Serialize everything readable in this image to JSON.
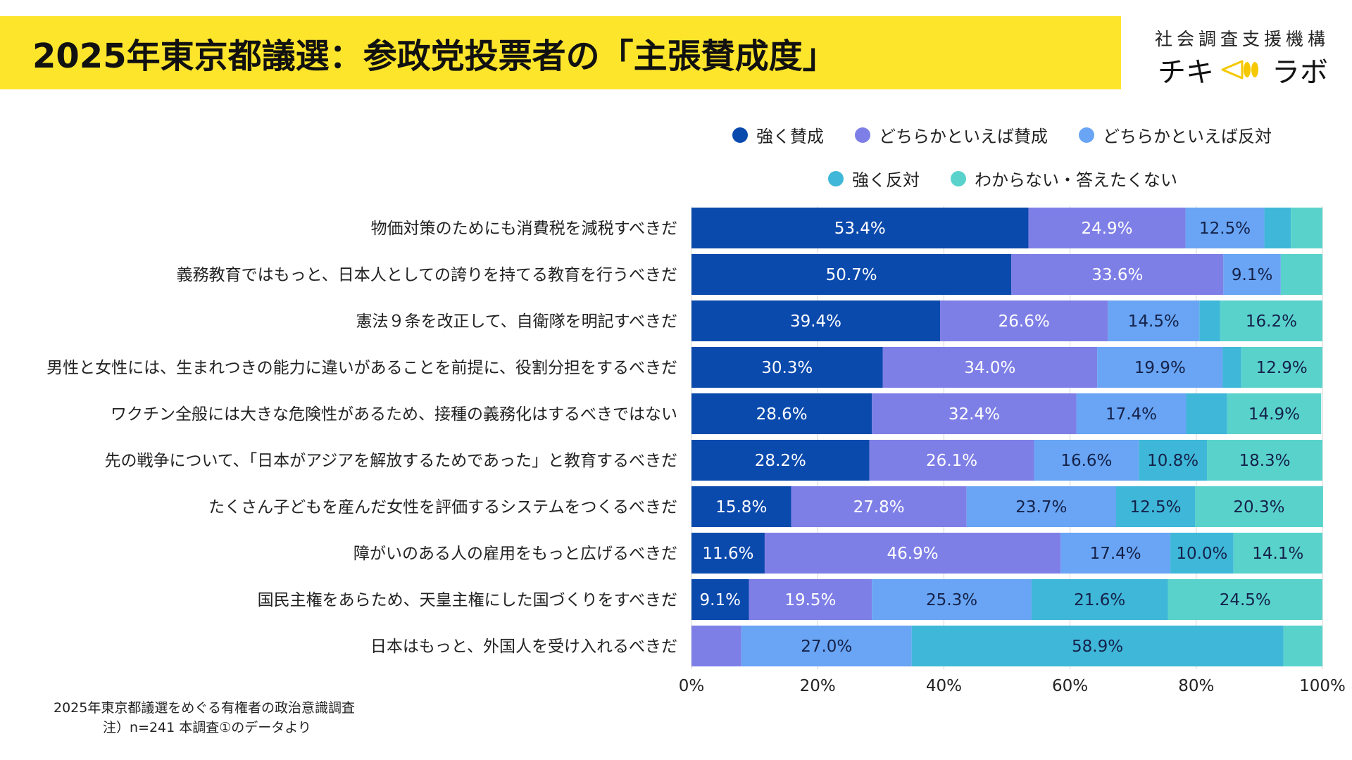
{
  "header": {
    "title": "2025年東京都議選：参政党投票者の「主張賛成度」",
    "org_name": "社会調査支援機構",
    "brand_left": "チキ",
    "brand_right": "ラボ"
  },
  "notes": {
    "source": "2025年東京都議選をめぐる有権者の政治意識調査",
    "sample": "注）n=241 本調査①のデータより"
  },
  "chart_data": {
    "type": "bar",
    "orientation": "horizontal",
    "stacked": true,
    "title": "",
    "xlabel": "",
    "ylabel": "",
    "xlim": [
      0,
      100
    ],
    "x_ticks": [
      "0%",
      "20%",
      "40%",
      "60%",
      "80%",
      "100%"
    ],
    "legend_position": "top-right",
    "grid": "vertical",
    "categories": [
      "物価対策のためにも消費税を減税すべきだ",
      "義務教育ではもっと、日本人としての誇りを持てる教育を行うべきだ",
      "憲法９条を改正して、自衛隊を明記すべきだ",
      "男性と女性には、生まれつきの能力に違いがあることを前提に、役割分担をするべきだ",
      "ワクチン全般には大きな危険性があるため、接種の義務化はするべきではない",
      "先の戦争について、「日本がアジアを解放するためであった」と教育するべきだ",
      "たくさん子どもを産んだ女性を評価するシステムをつくるべきだ",
      "障がいのある人の雇用をもっと広げるべきだ",
      "国民主権をあらため、天皇主権にした国づくりをすべきだ",
      "日本はもっと、外国人を受け入れるべきだ"
    ],
    "series": [
      {
        "name": "強く賛成",
        "color": "#0b4aad",
        "values": [
          53.4,
          50.7,
          39.4,
          30.3,
          28.6,
          28.2,
          15.8,
          11.6,
          9.1,
          0
        ],
        "labels": [
          "53.4%",
          "50.7%",
          "39.4%",
          "30.3%",
          "28.6%",
          "28.2%",
          "15.8%",
          "11.6%",
          "9.1%",
          ""
        ]
      },
      {
        "name": "どちらかといえば賛成",
        "color": "#7e7fe6",
        "values": [
          24.9,
          33.6,
          26.6,
          34.0,
          32.4,
          26.1,
          27.8,
          46.9,
          19.5,
          7.9
        ],
        "labels": [
          "24.9%",
          "33.6%",
          "26.6%",
          "34.0%",
          "32.4%",
          "26.1%",
          "27.8%",
          "46.9%",
          "19.5%",
          ""
        ]
      },
      {
        "name": "どちらかといえば反対",
        "color": "#69a5f4",
        "values": [
          12.5,
          9.1,
          14.5,
          19.9,
          17.4,
          16.6,
          23.7,
          17.4,
          25.3,
          27.0
        ],
        "labels": [
          "12.5%",
          "9.1%",
          "14.5%",
          "19.9%",
          "17.4%",
          "16.6%",
          "23.7%",
          "17.4%",
          "25.3%",
          "27.0%"
        ]
      },
      {
        "name": "強く反対",
        "color": "#3fb7d8",
        "values": [
          4.2,
          0.0,
          3.3,
          2.9,
          6.5,
          10.8,
          12.5,
          10.0,
          21.6,
          58.9
        ],
        "labels": [
          "",
          "",
          "",
          "",
          "",
          "10.8%",
          "12.5%",
          "10.0%",
          "21.6%",
          "58.9%"
        ]
      },
      {
        "name": "わからない・答えたくない",
        "color": "#59d2cc",
        "values": [
          5.0,
          6.6,
          16.2,
          12.9,
          14.9,
          18.3,
          20.3,
          14.1,
          24.5,
          6.2
        ],
        "labels": [
          "",
          "",
          "16.2%",
          "12.9%",
          "14.9%",
          "18.3%",
          "20.3%",
          "14.1%",
          "24.5%",
          ""
        ]
      }
    ]
  }
}
